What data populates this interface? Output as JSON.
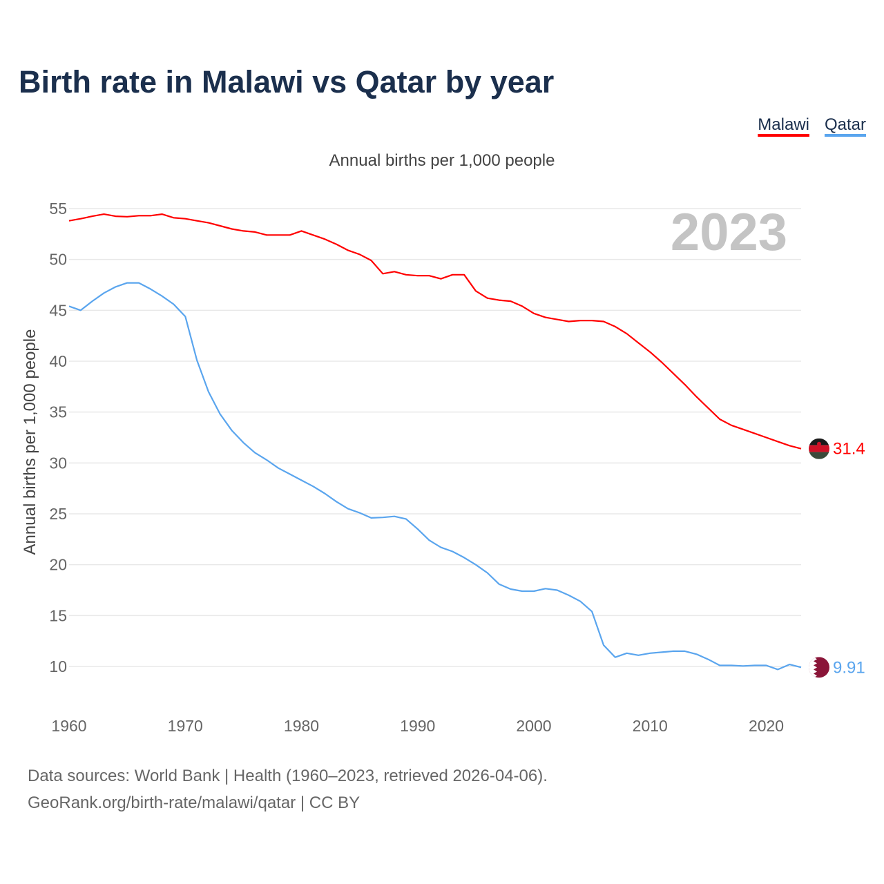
{
  "chart_data": {
    "type": "line",
    "title": "Birth rate in Malawi vs Qatar by year",
    "subtitle": "Annual births per 1,000 people",
    "ylabel": "Annual births per 1,000 people",
    "xlabel": "",
    "year_label": "2023",
    "xlim": [
      1960,
      2023
    ],
    "ylim": [
      7,
      56
    ],
    "x_ticks": [
      1960,
      1970,
      1980,
      1990,
      2000,
      2010,
      2020
    ],
    "y_ticks": [
      10,
      15,
      20,
      25,
      30,
      35,
      40,
      45,
      50,
      55
    ],
    "grid": true,
    "legend_position": "top-right",
    "x": [
      1960,
      1961,
      1962,
      1963,
      1964,
      1965,
      1966,
      1967,
      1968,
      1969,
      1970,
      1971,
      1972,
      1973,
      1974,
      1975,
      1976,
      1977,
      1978,
      1979,
      1980,
      1981,
      1982,
      1983,
      1984,
      1985,
      1986,
      1987,
      1988,
      1989,
      1990,
      1991,
      1992,
      1993,
      1994,
      1995,
      1996,
      1997,
      1998,
      1999,
      2000,
      2001,
      2002,
      2003,
      2004,
      2005,
      2006,
      2007,
      2008,
      2009,
      2010,
      2011,
      2012,
      2013,
      2014,
      2015,
      2016,
      2017,
      2018,
      2019,
      2020,
      2021,
      2022,
      2023
    ],
    "series": [
      {
        "name": "Malawi",
        "color": "#ff0000",
        "end_label": "31.4",
        "values": [
          53.8,
          54.0,
          54.25,
          54.45,
          54.25,
          54.2,
          54.3,
          54.3,
          54.45,
          54.1,
          54.0,
          53.8,
          53.6,
          53.3,
          53.0,
          52.8,
          52.7,
          52.4,
          52.4,
          52.4,
          52.8,
          52.4,
          52.0,
          51.5,
          50.9,
          50.5,
          49.9,
          48.6,
          48.8,
          48.5,
          48.4,
          48.4,
          48.1,
          48.5,
          48.5,
          46.9,
          46.2,
          46.0,
          45.9,
          45.4,
          44.7,
          44.3,
          44.1,
          43.9,
          44.0,
          44.0,
          43.9,
          43.4,
          42.7,
          41.8,
          40.9,
          39.9,
          38.8,
          37.7,
          36.5,
          35.4,
          34.3,
          33.7,
          33.3,
          32.9,
          32.5,
          32.1,
          31.7,
          31.4
        ]
      },
      {
        "name": "Qatar",
        "color": "#5aa5ee",
        "end_label": "9.91",
        "values": [
          45.4,
          45.0,
          45.9,
          46.7,
          47.3,
          47.7,
          47.7,
          47.1,
          46.4,
          45.6,
          44.4,
          40.1,
          37.0,
          34.8,
          33.2,
          32.0,
          31.0,
          30.3,
          29.5,
          28.9,
          28.3,
          27.7,
          27.0,
          26.2,
          25.5,
          25.1,
          24.6,
          24.65,
          24.75,
          24.5,
          23.5,
          22.4,
          21.7,
          21.3,
          20.7,
          20.0,
          19.2,
          18.1,
          17.6,
          17.4,
          17.4,
          17.65,
          17.5,
          17.0,
          16.4,
          15.4,
          12.1,
          10.9,
          11.3,
          11.1,
          11.3,
          11.4,
          11.5,
          11.5,
          11.2,
          10.7,
          10.1,
          10.1,
          10.05,
          10.1,
          10.1,
          9.7,
          10.2,
          9.91
        ]
      }
    ]
  },
  "footer": {
    "line1": "Data sources: World Bank | Health (1960–2023, retrieved 2026-04-06).",
    "line2": "GeoRank.org/birth-rate/malawi/qatar | CC BY"
  }
}
